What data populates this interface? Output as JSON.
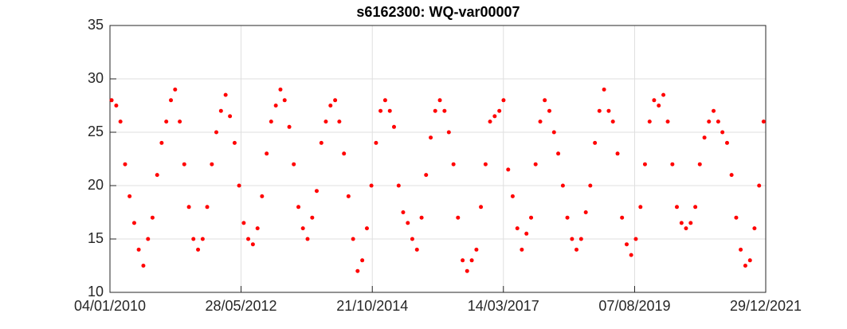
{
  "chart_data": {
    "type": "scatter",
    "title": "s6162300: WQ-var00007",
    "grid": true,
    "xlim": [
      "04/01/2010",
      "29/12/2021"
    ],
    "xticks": [
      "04/01/2010",
      "28/05/2012",
      "21/10/2014",
      "14/03/2017",
      "07/08/2019",
      "29/12/2021"
    ],
    "ylim": [
      10,
      35
    ],
    "yticks": [
      10,
      15,
      20,
      25,
      30,
      35
    ],
    "series": [
      {
        "color": "#ff0000",
        "x": [
          "15/01/2010",
          "15/02/2010",
          "15/03/2010",
          "15/04/2010",
          "15/05/2010",
          "15/06/2010",
          "15/07/2010",
          "15/08/2010",
          "15/09/2010",
          "15/10/2010",
          "15/11/2010",
          "15/12/2010",
          "15/01/2011",
          "15/02/2011",
          "15/03/2011",
          "15/04/2011",
          "15/05/2011",
          "15/06/2011",
          "15/07/2011",
          "15/08/2011",
          "15/09/2011",
          "15/10/2011",
          "15/11/2011",
          "15/12/2011",
          "15/01/2012",
          "15/02/2012",
          "15/03/2012",
          "15/04/2012",
          "15/05/2012",
          "15/06/2012",
          "15/07/2012",
          "15/08/2012",
          "15/09/2012",
          "15/10/2012",
          "15/11/2012",
          "15/12/2012",
          "15/01/2013",
          "15/02/2013",
          "15/03/2013",
          "15/04/2013",
          "15/05/2013",
          "15/06/2013",
          "15/07/2013",
          "15/08/2013",
          "15/09/2013",
          "15/10/2013",
          "15/11/2013",
          "15/12/2013",
          "15/01/2014",
          "15/02/2014",
          "15/03/2014",
          "15/04/2014",
          "15/05/2014",
          "15/06/2014",
          "15/07/2014",
          "15/08/2014",
          "15/09/2014",
          "15/10/2014",
          "15/11/2014",
          "15/12/2014",
          "15/01/2015",
          "15/02/2015",
          "15/03/2015",
          "15/04/2015",
          "15/05/2015",
          "15/06/2015",
          "15/07/2015",
          "15/08/2015",
          "15/09/2015",
          "15/10/2015",
          "15/11/2015",
          "15/12/2015",
          "15/01/2016",
          "15/02/2016",
          "15/03/2016",
          "15/04/2016",
          "15/05/2016",
          "15/06/2016",
          "15/07/2016",
          "15/08/2016",
          "15/09/2016",
          "15/10/2016",
          "15/11/2016",
          "15/12/2016",
          "15/01/2017",
          "15/02/2017",
          "15/03/2017",
          "15/04/2017",
          "15/05/2017",
          "15/06/2017",
          "15/07/2017",
          "15/08/2017",
          "15/09/2017",
          "15/10/2017",
          "15/11/2017",
          "15/12/2017",
          "15/01/2018",
          "15/02/2018",
          "15/03/2018",
          "15/04/2018",
          "15/05/2018",
          "15/06/2018",
          "15/07/2018",
          "15/08/2018",
          "15/09/2018",
          "15/10/2018",
          "15/11/2018",
          "15/12/2018",
          "15/01/2019",
          "15/02/2019",
          "15/03/2019",
          "15/04/2019",
          "15/05/2019",
          "15/06/2019",
          "15/07/2019",
          "15/08/2019",
          "15/09/2019",
          "15/10/2019",
          "15/11/2019",
          "15/12/2019",
          "15/01/2020",
          "15/02/2020",
          "15/03/2020",
          "15/04/2020",
          "15/05/2020",
          "15/06/2020",
          "15/07/2020",
          "15/08/2020",
          "15/09/2020",
          "15/10/2020",
          "15/11/2020",
          "15/12/2020",
          "15/01/2021",
          "15/02/2021",
          "15/03/2021",
          "15/04/2021",
          "15/05/2021",
          "15/06/2021",
          "15/07/2021",
          "15/08/2021",
          "15/09/2021",
          "15/10/2021",
          "15/11/2021",
          "15/12/2021"
        ],
        "values": [
          28,
          27.5,
          26,
          22,
          19,
          16.5,
          14,
          12.5,
          15,
          17,
          21,
          24,
          26,
          28,
          29,
          26,
          22,
          18,
          15,
          14,
          15,
          18,
          22,
          25,
          27,
          28.5,
          26.5,
          24,
          20,
          16.5,
          15,
          14.5,
          16,
          19,
          23,
          26,
          27.5,
          29,
          28,
          25.5,
          22,
          18,
          16,
          15,
          17,
          19.5,
          24,
          26,
          27.5,
          28,
          26,
          23,
          19,
          15,
          12,
          13,
          16,
          20,
          24,
          27,
          28,
          27,
          25.5,
          20,
          17.5,
          16.5,
          15,
          14,
          17,
          21,
          24.5,
          27,
          28,
          27,
          25,
          22,
          17,
          13,
          12,
          13,
          14,
          18,
          22,
          26,
          26.5,
          27,
          28,
          21.5,
          19,
          16,
          14,
          15.5,
          17,
          22,
          26,
          28,
          27,
          25,
          23,
          20,
          17,
          15,
          14,
          15,
          17.5,
          20,
          24,
          27,
          29,
          27,
          26,
          23,
          17,
          14.5,
          13.5,
          15,
          18,
          22,
          26,
          28,
          27.5,
          28.5,
          26,
          22,
          18,
          16.5,
          16,
          16.5,
          18,
          22,
          24.5,
          26,
          27,
          26,
          25,
          24,
          21,
          17,
          14,
          12.5,
          13,
          16,
          20,
          26
        ]
      }
    ]
  }
}
